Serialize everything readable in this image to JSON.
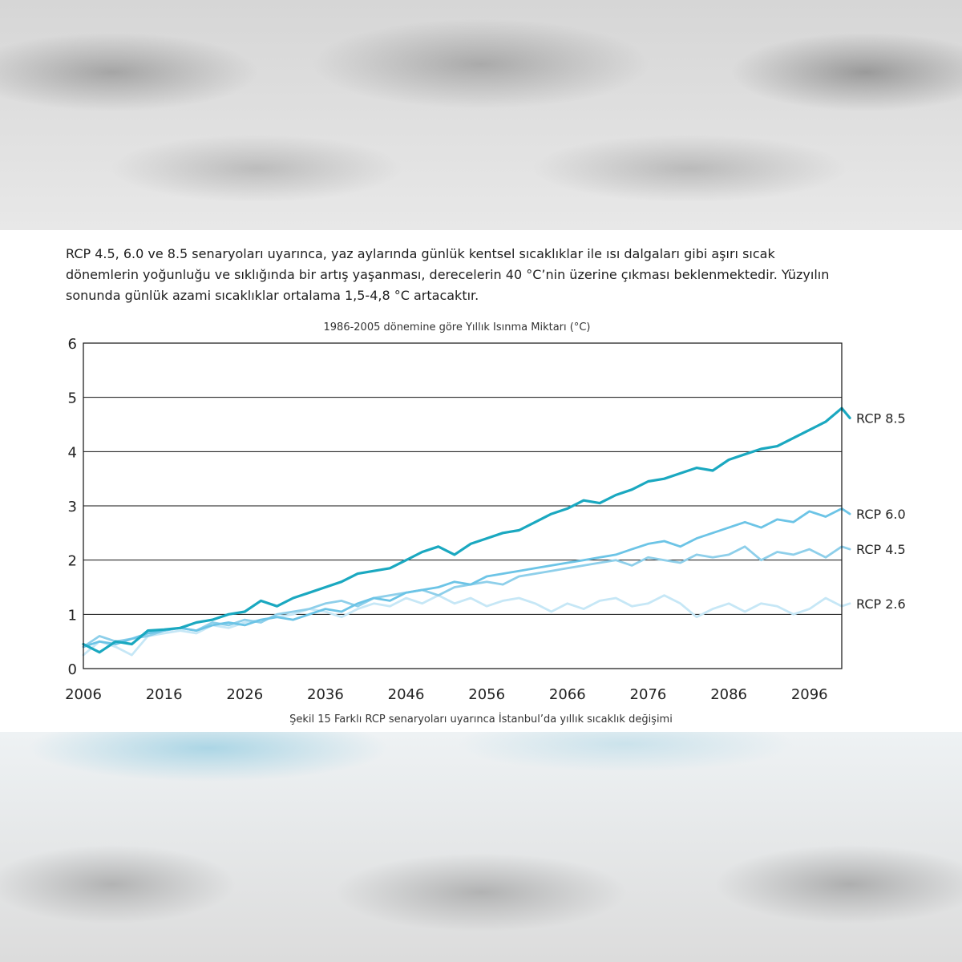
{
  "intro_text": "RCP 4.5, 6.0 ve 8.5 senaryoları uyarınca, yaz aylarında günlük kentsel sıcaklıklar ile ısı dalgaları gibi aşırı sıcak dönemlerin yoğunluğu ve sıklığında bir artış yaşanması, derecelerin 40 °C’nin üzerine çıkması beklenmektedir. Yüzyılın sonunda günlük azami sıcaklıklar ortalama 1,5-4,8 °C artacaktır.",
  "caption": "Şekil 15 Farklı RCP senaryoları uyarınca İstanbul’da yıllık sıcaklık değişimi",
  "chart_data": {
    "type": "line",
    "title": "1986-2005 dönemine göre Yıllık Isınma Miktarı (°C)",
    "xlabel": "",
    "ylabel": "",
    "xlim": [
      2006,
      2100
    ],
    "ylim": [
      0,
      6
    ],
    "yticks": [
      0,
      1,
      2,
      3,
      4,
      5,
      6
    ],
    "xticks": [
      2006,
      2016,
      2026,
      2036,
      2046,
      2056,
      2066,
      2076,
      2086,
      2096
    ],
    "grid": "horizontal",
    "legend": "labels at right end of lines",
    "colors": {
      "rcp85": "#1aa8c0",
      "rcp60": "#6cc4e6",
      "rcp45": "#8ecfea",
      "rcp26": "#c6e7f6",
      "axis": "#111111"
    },
    "series": [
      {
        "name": "RCP 2.6",
        "points": [
          [
            2006,
            0.25
          ],
          [
            2008,
            0.5
          ],
          [
            2010,
            0.4
          ],
          [
            2012,
            0.25
          ],
          [
            2014,
            0.6
          ],
          [
            2016,
            0.65
          ],
          [
            2018,
            0.7
          ],
          [
            2020,
            0.65
          ],
          [
            2022,
            0.8
          ],
          [
            2024,
            0.75
          ],
          [
            2026,
            0.85
          ],
          [
            2028,
            0.9
          ],
          [
            2030,
            0.95
          ],
          [
            2032,
            1.0
          ],
          [
            2034,
            1.1
          ],
          [
            2036,
            1.05
          ],
          [
            2038,
            0.95
          ],
          [
            2040,
            1.1
          ],
          [
            2042,
            1.2
          ],
          [
            2044,
            1.15
          ],
          [
            2046,
            1.3
          ],
          [
            2048,
            1.2
          ],
          [
            2050,
            1.35
          ],
          [
            2052,
            1.2
          ],
          [
            2054,
            1.3
          ],
          [
            2056,
            1.15
          ],
          [
            2058,
            1.25
          ],
          [
            2060,
            1.3
          ],
          [
            2062,
            1.2
          ],
          [
            2064,
            1.05
          ],
          [
            2066,
            1.2
          ],
          [
            2068,
            1.1
          ],
          [
            2070,
            1.25
          ],
          [
            2072,
            1.3
          ],
          [
            2074,
            1.15
          ],
          [
            2076,
            1.2
          ],
          [
            2078,
            1.35
          ],
          [
            2080,
            1.2
          ],
          [
            2082,
            0.95
          ],
          [
            2084,
            1.1
          ],
          [
            2086,
            1.2
          ],
          [
            2088,
            1.05
          ],
          [
            2090,
            1.2
          ],
          [
            2092,
            1.15
          ],
          [
            2094,
            1.0
          ],
          [
            2096,
            1.1
          ],
          [
            2098,
            1.3
          ],
          [
            2100,
            1.15
          ],
          [
            2101,
            1.2
          ]
        ]
      },
      {
        "name": "RCP 4.5",
        "points": [
          [
            2006,
            0.4
          ],
          [
            2008,
            0.6
          ],
          [
            2010,
            0.5
          ],
          [
            2012,
            0.55
          ],
          [
            2014,
            0.6
          ],
          [
            2016,
            0.7
          ],
          [
            2018,
            0.75
          ],
          [
            2020,
            0.7
          ],
          [
            2022,
            0.85
          ],
          [
            2024,
            0.8
          ],
          [
            2026,
            0.9
          ],
          [
            2028,
            0.85
          ],
          [
            2030,
            1.0
          ],
          [
            2032,
            1.05
          ],
          [
            2034,
            1.1
          ],
          [
            2036,
            1.2
          ],
          [
            2038,
            1.25
          ],
          [
            2040,
            1.15
          ],
          [
            2042,
            1.3
          ],
          [
            2044,
            1.35
          ],
          [
            2046,
            1.4
          ],
          [
            2048,
            1.45
          ],
          [
            2050,
            1.35
          ],
          [
            2052,
            1.5
          ],
          [
            2054,
            1.55
          ],
          [
            2056,
            1.6
          ],
          [
            2058,
            1.55
          ],
          [
            2060,
            1.7
          ],
          [
            2062,
            1.75
          ],
          [
            2064,
            1.8
          ],
          [
            2066,
            1.85
          ],
          [
            2068,
            1.9
          ],
          [
            2070,
            1.95
          ],
          [
            2072,
            2.0
          ],
          [
            2074,
            1.9
          ],
          [
            2076,
            2.05
          ],
          [
            2078,
            2.0
          ],
          [
            2080,
            1.95
          ],
          [
            2082,
            2.1
          ],
          [
            2084,
            2.05
          ],
          [
            2086,
            2.1
          ],
          [
            2088,
            2.25
          ],
          [
            2090,
            2.0
          ],
          [
            2092,
            2.15
          ],
          [
            2094,
            2.1
          ],
          [
            2096,
            2.2
          ],
          [
            2098,
            2.05
          ],
          [
            2100,
            2.25
          ],
          [
            2101,
            2.2
          ]
        ]
      },
      {
        "name": "RCP 6.0",
        "points": [
          [
            2006,
            0.4
          ],
          [
            2008,
            0.5
          ],
          [
            2010,
            0.45
          ],
          [
            2012,
            0.55
          ],
          [
            2014,
            0.65
          ],
          [
            2016,
            0.7
          ],
          [
            2018,
            0.75
          ],
          [
            2020,
            0.7
          ],
          [
            2022,
            0.8
          ],
          [
            2024,
            0.85
          ],
          [
            2026,
            0.8
          ],
          [
            2028,
            0.9
          ],
          [
            2030,
            0.95
          ],
          [
            2032,
            0.9
          ],
          [
            2034,
            1.0
          ],
          [
            2036,
            1.1
          ],
          [
            2038,
            1.05
          ],
          [
            2040,
            1.2
          ],
          [
            2042,
            1.3
          ],
          [
            2044,
            1.25
          ],
          [
            2046,
            1.4
          ],
          [
            2048,
            1.45
          ],
          [
            2050,
            1.5
          ],
          [
            2052,
            1.6
          ],
          [
            2054,
            1.55
          ],
          [
            2056,
            1.7
          ],
          [
            2058,
            1.75
          ],
          [
            2060,
            1.8
          ],
          [
            2062,
            1.85
          ],
          [
            2064,
            1.9
          ],
          [
            2066,
            1.95
          ],
          [
            2068,
            2.0
          ],
          [
            2070,
            2.05
          ],
          [
            2072,
            2.1
          ],
          [
            2074,
            2.2
          ],
          [
            2076,
            2.3
          ],
          [
            2078,
            2.35
          ],
          [
            2080,
            2.25
          ],
          [
            2082,
            2.4
          ],
          [
            2084,
            2.5
          ],
          [
            2086,
            2.6
          ],
          [
            2088,
            2.7
          ],
          [
            2090,
            2.6
          ],
          [
            2092,
            2.75
          ],
          [
            2094,
            2.7
          ],
          [
            2096,
            2.9
          ],
          [
            2098,
            2.8
          ],
          [
            2100,
            2.95
          ],
          [
            2101,
            2.85
          ]
        ]
      },
      {
        "name": "RCP 8.5",
        "points": [
          [
            2006,
            0.45
          ],
          [
            2008,
            0.3
          ],
          [
            2010,
            0.5
          ],
          [
            2012,
            0.45
          ],
          [
            2014,
            0.7
          ],
          [
            2016,
            0.72
          ],
          [
            2018,
            0.75
          ],
          [
            2020,
            0.85
          ],
          [
            2022,
            0.9
          ],
          [
            2024,
            1.0
          ],
          [
            2026,
            1.05
          ],
          [
            2028,
            1.25
          ],
          [
            2030,
            1.15
          ],
          [
            2032,
            1.3
          ],
          [
            2034,
            1.4
          ],
          [
            2036,
            1.5
          ],
          [
            2038,
            1.6
          ],
          [
            2040,
            1.75
          ],
          [
            2042,
            1.8
          ],
          [
            2044,
            1.85
          ],
          [
            2046,
            2.0
          ],
          [
            2048,
            2.15
          ],
          [
            2050,
            2.25
          ],
          [
            2052,
            2.1
          ],
          [
            2054,
            2.3
          ],
          [
            2056,
            2.4
          ],
          [
            2058,
            2.5
          ],
          [
            2060,
            2.55
          ],
          [
            2062,
            2.7
          ],
          [
            2064,
            2.85
          ],
          [
            2066,
            2.95
          ],
          [
            2068,
            3.1
          ],
          [
            2070,
            3.05
          ],
          [
            2072,
            3.2
          ],
          [
            2074,
            3.3
          ],
          [
            2076,
            3.45
          ],
          [
            2078,
            3.5
          ],
          [
            2080,
            3.6
          ],
          [
            2082,
            3.7
          ],
          [
            2084,
            3.65
          ],
          [
            2086,
            3.85
          ],
          [
            2088,
            3.95
          ],
          [
            2090,
            4.05
          ],
          [
            2092,
            4.1
          ],
          [
            2094,
            4.25
          ],
          [
            2096,
            4.4
          ],
          [
            2098,
            4.55
          ],
          [
            2100,
            4.8
          ],
          [
            2101,
            4.62
          ]
        ]
      }
    ]
  }
}
